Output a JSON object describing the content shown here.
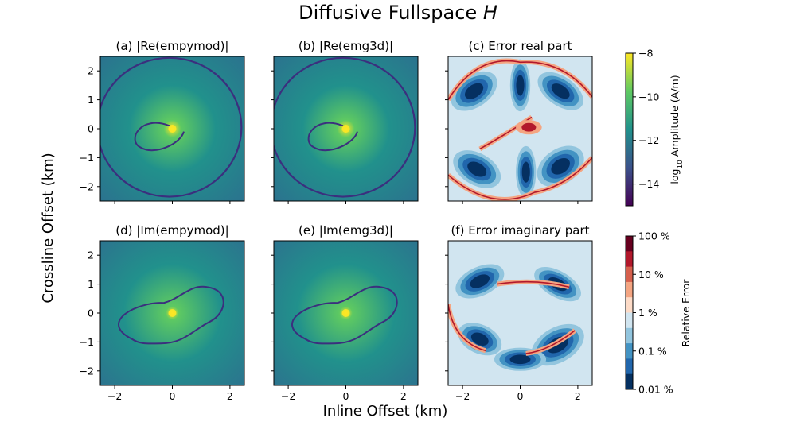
{
  "figure": {
    "title_text": "Diffusive Fullspace ",
    "title_var": "H",
    "xlabel": "Inline Offset (km)",
    "ylabel": "Crossline Offset (km)"
  },
  "chart_data": [
    {
      "type": "heatmap",
      "id": "a",
      "title": "(a) |Re(empymod)|",
      "component": "real",
      "quantity": "amplitude",
      "xlim": [
        -2.5,
        2.5
      ],
      "ylim": [
        -2.5,
        2.5
      ],
      "xticks": [
        -2,
        0,
        2
      ],
      "yticks": [
        -2,
        -1,
        0,
        1,
        2
      ],
      "show_yticklabels": true,
      "show_xticklabels": false
    },
    {
      "type": "heatmap",
      "id": "b",
      "title": "(b) |Re(emg3d)|",
      "component": "real",
      "quantity": "amplitude",
      "xlim": [
        -2.5,
        2.5
      ],
      "ylim": [
        -2.5,
        2.5
      ],
      "xticks": [
        -2,
        0,
        2
      ],
      "yticks": [
        -2,
        -1,
        0,
        1,
        2
      ],
      "show_yticklabels": false,
      "show_xticklabels": false
    },
    {
      "type": "heatmap",
      "id": "c",
      "title": "(c) Error real part",
      "component": "real",
      "quantity": "relative error",
      "xlim": [
        -2.5,
        2.5
      ],
      "ylim": [
        -2.5,
        2.5
      ],
      "xticks": [
        -2,
        0,
        2
      ],
      "yticks": [
        -2,
        -1,
        0,
        1,
        2
      ],
      "show_yticklabels": false,
      "show_xticklabels": false
    },
    {
      "type": "heatmap",
      "id": "d",
      "title": "(d) |Im(empymod)|",
      "component": "imaginary",
      "quantity": "amplitude",
      "xlim": [
        -2.5,
        2.5
      ],
      "ylim": [
        -2.5,
        2.5
      ],
      "xticks": [
        -2,
        0,
        2
      ],
      "yticks": [
        -2,
        -1,
        0,
        1,
        2
      ],
      "show_yticklabels": true,
      "show_xticklabels": true
    },
    {
      "type": "heatmap",
      "id": "e",
      "title": "(e) |Im(emg3d)|",
      "component": "imaginary",
      "quantity": "amplitude",
      "xlim": [
        -2.5,
        2.5
      ],
      "ylim": [
        -2.5,
        2.5
      ],
      "xticks": [
        -2,
        0,
        2
      ],
      "yticks": [
        -2,
        -1,
        0,
        1,
        2
      ],
      "show_yticklabels": false,
      "show_xticklabels": true
    },
    {
      "type": "heatmap",
      "id": "f",
      "title": "(f) Error imaginary part",
      "component": "imaginary",
      "quantity": "relative error",
      "xlim": [
        -2.5,
        2.5
      ],
      "ylim": [
        -2.5,
        2.5
      ],
      "xticks": [
        -2,
        0,
        2
      ],
      "yticks": [
        -2,
        -1,
        0,
        1,
        2
      ],
      "show_yticklabels": false,
      "show_xticklabels": true
    }
  ],
  "colorbars": {
    "amplitude": {
      "label_prefix": "log",
      "label_sub": "10",
      "label_suffix": " Amplitude (A/m)",
      "range": [
        -15,
        -8
      ],
      "ticks": [
        -8,
        -10,
        -12,
        -14
      ],
      "colormap": "viridis",
      "colors": [
        "#440154",
        "#3b528b",
        "#21918c",
        "#5ec962",
        "#fde725"
      ]
    },
    "error": {
      "label": "Relative Error",
      "ticks": [
        "100 %",
        "10 %",
        "1 %",
        "0.1 %",
        "0.01 %"
      ],
      "levels": [
        "#67001f",
        "#b2182b",
        "#d6604d",
        "#f4a582",
        "#fddbc7",
        "#d1e5f0",
        "#92c5de",
        "#4393c3",
        "#2166ac",
        "#053061"
      ]
    }
  }
}
